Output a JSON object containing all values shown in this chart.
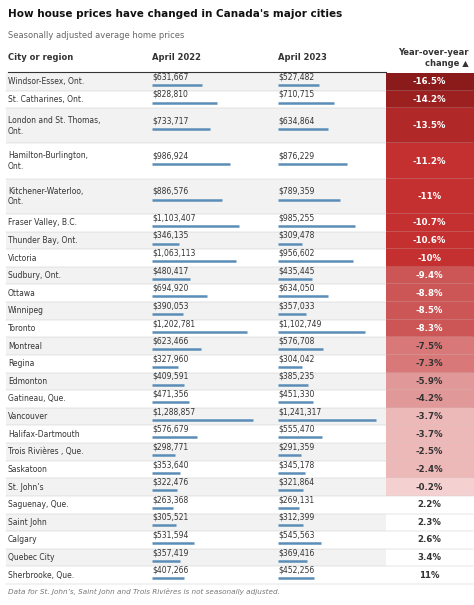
{
  "title": "How house prices have changed in Canada's major cities",
  "subtitle": "Seasonally adjusted average home prices",
  "footnote": "Data for St. John’s, Saint John and Trois Rivières is not seasonally adjusted.",
  "col_headers": [
    "City or region",
    "April 2022",
    "April 2023",
    "Year-over-year\nchange ▲"
  ],
  "rows": [
    {
      "city": "Windsor-Essex, Ont.",
      "apr2022": 631667,
      "apr2023": 527482,
      "pct": -16.5,
      "pct_str": "-16.5%"
    },
    {
      "city": "St. Catharines, Ont.",
      "apr2022": 828810,
      "apr2023": 710715,
      "pct": -14.2,
      "pct_str": "-14.2%"
    },
    {
      "city": "London and St. Thomas,\nOnt.",
      "apr2022": 733717,
      "apr2023": 634864,
      "pct": -13.5,
      "pct_str": "-13.5%"
    },
    {
      "city": "Hamilton-Burlington,\nOnt.",
      "apr2022": 986924,
      "apr2023": 876229,
      "pct": -11.2,
      "pct_str": "-11.2%"
    },
    {
      "city": "Kitchener-Waterloo,\nOnt.",
      "apr2022": 886576,
      "apr2023": 789359,
      "pct": -11.0,
      "pct_str": "-11%"
    },
    {
      "city": "Fraser Valley, B.C.",
      "apr2022": 1103407,
      "apr2023": 985255,
      "pct": -10.7,
      "pct_str": "-10.7%"
    },
    {
      "city": "Thunder Bay, Ont.",
      "apr2022": 346135,
      "apr2023": 309478,
      "pct": -10.6,
      "pct_str": "-10.6%"
    },
    {
      "city": "Victoria",
      "apr2022": 1063113,
      "apr2023": 956602,
      "pct": -10.0,
      "pct_str": "-10%"
    },
    {
      "city": "Sudbury, Ont.",
      "apr2022": 480417,
      "apr2023": 435445,
      "pct": -9.4,
      "pct_str": "-9.4%"
    },
    {
      "city": "Ottawa",
      "apr2022": 694920,
      "apr2023": 634050,
      "pct": -8.8,
      "pct_str": "-8.8%"
    },
    {
      "city": "Winnipeg",
      "apr2022": 390053,
      "apr2023": 357033,
      "pct": -8.5,
      "pct_str": "-8.5%"
    },
    {
      "city": "Toronto",
      "apr2022": 1202781,
      "apr2023": 1102749,
      "pct": -8.3,
      "pct_str": "-8.3%"
    },
    {
      "city": "Montreal",
      "apr2022": 623466,
      "apr2023": 576708,
      "pct": -7.5,
      "pct_str": "-7.5%"
    },
    {
      "city": "Regina",
      "apr2022": 327960,
      "apr2023": 304042,
      "pct": -7.3,
      "pct_str": "-7.3%"
    },
    {
      "city": "Edmonton",
      "apr2022": 409591,
      "apr2023": 385235,
      "pct": -5.9,
      "pct_str": "-5.9%"
    },
    {
      "city": "Gatineau, Que.",
      "apr2022": 471356,
      "apr2023": 451330,
      "pct": -4.2,
      "pct_str": "-4.2%"
    },
    {
      "city": "Vancouver",
      "apr2022": 1288857,
      "apr2023": 1241317,
      "pct": -3.7,
      "pct_str": "-3.7%"
    },
    {
      "city": "Halifax-Dartmouth",
      "apr2022": 576679,
      "apr2023": 555470,
      "pct": -3.7,
      "pct_str": "-3.7%"
    },
    {
      "city": "Trois Rivières , Que.",
      "apr2022": 298771,
      "apr2023": 291359,
      "pct": -2.5,
      "pct_str": "-2.5%"
    },
    {
      "city": "Saskatoon",
      "apr2022": 353640,
      "apr2023": 345178,
      "pct": -2.4,
      "pct_str": "-2.4%"
    },
    {
      "city": "St. John’s",
      "apr2022": 322476,
      "apr2023": 321864,
      "pct": -0.2,
      "pct_str": "-0.2%"
    },
    {
      "city": "Saguenay, Que.",
      "apr2022": 263368,
      "apr2023": 269131,
      "pct": 2.2,
      "pct_str": "2.2%"
    },
    {
      "city": "Saint John",
      "apr2022": 305521,
      "apr2023": 312399,
      "pct": 2.3,
      "pct_str": "2.3%"
    },
    {
      "city": "Calgary",
      "apr2022": 531594,
      "apr2023": 545563,
      "pct": 2.6,
      "pct_str": "2.6%"
    },
    {
      "city": "Quebec City",
      "apr2022": 357419,
      "apr2023": 369416,
      "pct": 3.4,
      "pct_str": "3.4%"
    },
    {
      "city": "Sherbrooke, Que.",
      "apr2022": 407266,
      "apr2023": 452256,
      "pct": 11.0,
      "pct_str": "11%"
    }
  ],
  "max_price": 1400000,
  "bar_color": "#5b8db8",
  "bg_color": "#ffffff",
  "text_color": "#333333"
}
